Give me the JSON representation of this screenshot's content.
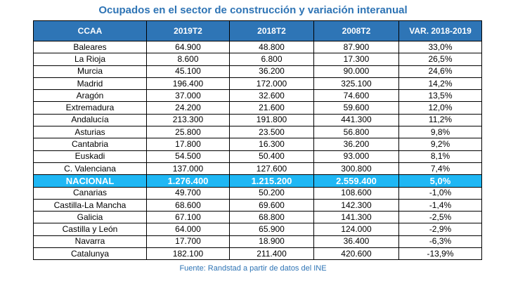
{
  "title": "Ocupados en el sector de construcción y variación interanual",
  "columns": [
    "CCAA",
    "2019T2",
    "2018T2",
    "2008T2",
    "VAR. 2018-2019"
  ],
  "rows": [
    [
      "Baleares",
      "64.900",
      "48.800",
      "87.900",
      "33,0%"
    ],
    [
      "La Rioja",
      "8.600",
      "6.800",
      "17.300",
      "26,5%"
    ],
    [
      "Murcia",
      "45.100",
      "36.200",
      "90.000",
      "24,6%"
    ],
    [
      "Madrid",
      "196.400",
      "172.000",
      "325.100",
      "14,2%"
    ],
    [
      "Aragón",
      "37.000",
      "32.600",
      "74.600",
      "13,5%"
    ],
    [
      "Extremadura",
      "24.200",
      "21.600",
      "59.600",
      "12,0%"
    ],
    [
      "Andalucía",
      "213.300",
      "191.800",
      "441.300",
      "11,2%"
    ],
    [
      "Asturias",
      "25.800",
      "23.500",
      "56.800",
      "9,8%"
    ],
    [
      "Cantabria",
      "17.800",
      "16.300",
      "36.200",
      "9,2%"
    ],
    [
      "Euskadi",
      "54.500",
      "50.400",
      "93.000",
      "8,1%"
    ],
    [
      "C. Valenciana",
      "137.000",
      "127.600",
      "300.800",
      "7,4%"
    ],
    [
      "NACIONAL",
      "1.276.400",
      "1.215.200",
      "2.559.400",
      "5,0%"
    ],
    [
      "Canarias",
      "49.700",
      "50.200",
      "108.600",
      "-1,0%"
    ],
    [
      "Castilla-La Mancha",
      "68.600",
      "69.600",
      "142.300",
      "-1,4%"
    ],
    [
      "Galicia",
      "67.100",
      "68.800",
      "141.300",
      "-2,5%"
    ],
    [
      "Castilla y León",
      "64.000",
      "65.900",
      "124.000",
      "-2,9%"
    ],
    [
      "Navarra",
      "17.700",
      "18.900",
      "36.400",
      "-6,3%"
    ],
    [
      "Catalunya",
      "182.100",
      "211.400",
      "420.600",
      "-13,9%"
    ]
  ],
  "highlight_row": "NACIONAL",
  "source": "Fuente: Randstad a partir de datos del INE",
  "colors": {
    "title": "#2e74b5",
    "header_bg": "#2e75b6",
    "highlight_bg": "#1fb7f4"
  }
}
